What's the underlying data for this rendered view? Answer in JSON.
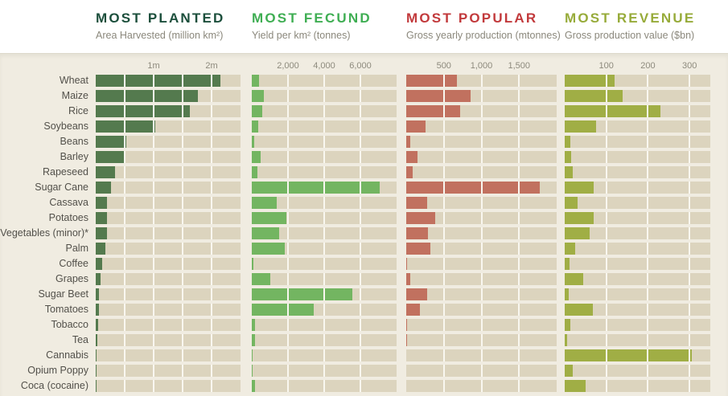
{
  "page": {
    "background": "#ffffff",
    "band_background": "#f0ece1",
    "cell_background": "#dcd4be",
    "gridline_color": "#f9f7f0",
    "label_color": "#52504a",
    "tick_color": "#8d8a7d",
    "subtitle_color": "#8b887c"
  },
  "header": {
    "columns": [
      {
        "title": "MOST PLANTED",
        "subtitle": "Area Harvested (million km²)",
        "color": "#1c4f3c"
      },
      {
        "title": "MOST FECUND",
        "subtitle": "Yield per km² (tonnes)",
        "color": "#3fae53"
      },
      {
        "title": "MOST POPULAR",
        "subtitle": "Gross yearly production (mtonnes)",
        "color": "#c23a3c"
      },
      {
        "title": "MOST REVENUE",
        "subtitle": "Gross production value ($bn)",
        "color": "#97ab3a"
      }
    ]
  },
  "chart_data": {
    "type": "bar",
    "orientation": "horizontal",
    "grid": true,
    "categories": [
      "Wheat",
      "Maize",
      "Rice",
      "Soybeans",
      "Beans",
      "Barley",
      "Rapeseed",
      "Sugar Cane",
      "Cassava",
      "Potatoes",
      "Vegetables (minor)*",
      "Palm",
      "Coffee",
      "Grapes",
      "Sugar Beet",
      "Tomatoes",
      "Tobacco",
      "Tea",
      "Cannabis",
      "Opium Poppy",
      "Coca (cocaine)"
    ],
    "series": [
      {
        "name": "Most Planted",
        "metric": "Area Harvested (million km²)",
        "color": "#547a4e",
        "xlim": [
          0,
          2.5
        ],
        "grid_step": 0.5,
        "ticks": [
          {
            "value": 1,
            "label": "1m"
          },
          {
            "value": 2,
            "label": "2m"
          }
        ],
        "values": [
          2.15,
          1.77,
          1.63,
          1.03,
          0.53,
          0.5,
          0.34,
          0.26,
          0.2,
          0.2,
          0.2,
          0.17,
          0.11,
          0.08,
          0.06,
          0.05,
          0.04,
          0.03,
          0.015,
          0.005,
          0.003
        ]
      },
      {
        "name": "Most Fecund",
        "metric": "Yield per km² (tonnes)",
        "color": "#73b561",
        "xlim": [
          0,
          8000
        ],
        "grid_step": 2000,
        "ticks": [
          {
            "value": 2000,
            "label": "2,000"
          },
          {
            "value": 4000,
            "label": "4,000"
          },
          {
            "value": 6000,
            "label": "6,000"
          }
        ],
        "values": [
          410,
          650,
          560,
          370,
          150,
          470,
          300,
          7050,
          1370,
          1900,
          1500,
          1820,
          70,
          1020,
          5550,
          3420,
          180,
          170,
          45,
          30,
          170
        ]
      },
      {
        "name": "Most Popular",
        "metric": "Gross yearly production (mtonnes)",
        "color": "#c1715f",
        "xlim": [
          0,
          2000
        ],
        "grid_step": 500,
        "ticks": [
          {
            "value": 500,
            "label": "500"
          },
          {
            "value": 1000,
            "label": "1,000"
          },
          {
            "value": 1500,
            "label": "1,500"
          }
        ],
        "values": [
          670,
          855,
          715,
          255,
          50,
          150,
          90,
          1780,
          275,
          385,
          285,
          320,
          10,
          55,
          280,
          180,
          15,
          5,
          0,
          0,
          0
        ]
      },
      {
        "name": "Most Revenue",
        "metric": "Gross production value ($bn)",
        "color": "#a0ae45",
        "xlim": [
          0,
          350
        ],
        "grid_step": 100,
        "ticks": [
          {
            "value": 100,
            "label": "100"
          },
          {
            "value": 200,
            "label": "200"
          },
          {
            "value": 300,
            "label": "300"
          }
        ],
        "values": [
          120,
          140,
          230,
          75,
          14,
          16,
          20,
          70,
          30,
          70,
          60,
          26,
          12,
          45,
          10,
          67,
          13,
          5,
          305,
          20,
          50
        ]
      }
    ]
  }
}
